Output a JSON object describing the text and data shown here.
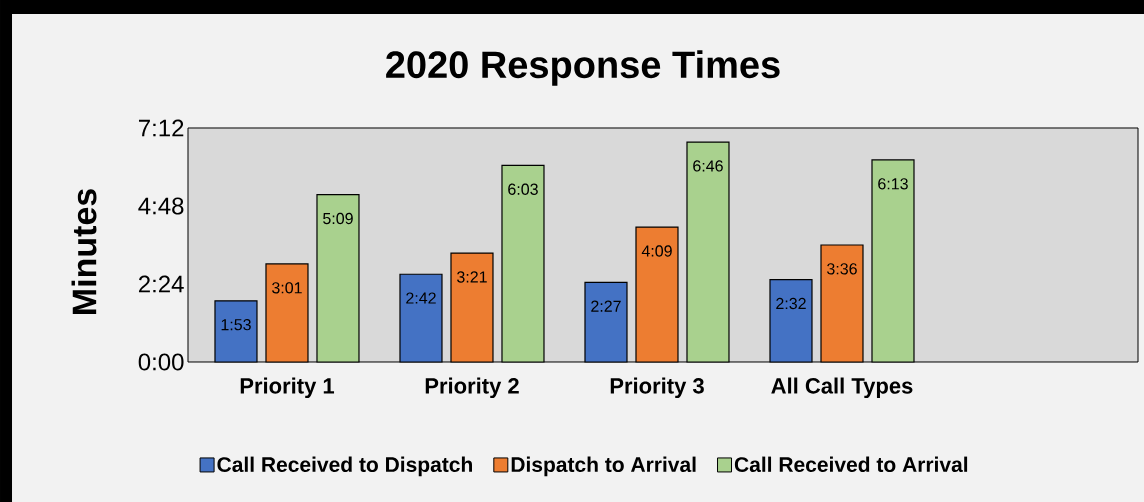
{
  "chart_data": {
    "type": "bar",
    "title": "2020 Response Times",
    "ylabel": "Minutes",
    "categories": [
      "Priority 1",
      "Priority 2",
      "Priority 3",
      "All Call Types"
    ],
    "series": [
      {
        "name": "Call Received to Dispatch",
        "color": "#4472c4",
        "values": [
          1.8833,
          2.7,
          2.45,
          2.5333
        ],
        "value_labels": [
          "1:53",
          "2:42",
          "2:27",
          "2:32"
        ]
      },
      {
        "name": "Dispatch to Arrival",
        "color": "#ed7d31",
        "values": [
          3.0167,
          3.35,
          4.15,
          3.6
        ],
        "value_labels": [
          "3:01",
          "3:21",
          "4:09",
          "3:36"
        ]
      },
      {
        "name": "Call Received to Arrival",
        "color": "#a9d18e",
        "values": [
          5.15,
          6.05,
          6.7667,
          6.2167
        ],
        "value_labels": [
          "5:09",
          "6:03",
          "6:46",
          "6:13"
        ]
      }
    ],
    "ylim": [
      0,
      7.2
    ],
    "yticks": [
      {
        "value": 0,
        "label": "0:00"
      },
      {
        "value": 2.4,
        "label": "2:24"
      },
      {
        "value": 4.8,
        "label": "4:48"
      },
      {
        "value": 7.2,
        "label": "7:12"
      }
    ],
    "legend": "bottom"
  }
}
